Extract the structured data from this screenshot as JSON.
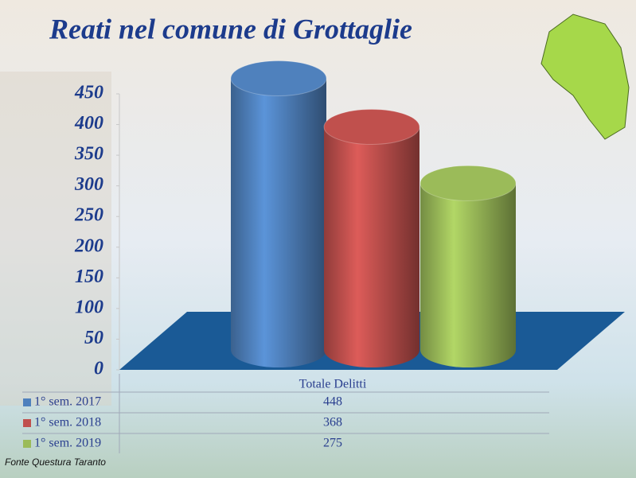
{
  "chart_data": {
    "type": "bar",
    "title": "Reati nel comune di Grottaglie",
    "categories": [
      "Totale Delitti"
    ],
    "series": [
      {
        "name": "1° sem. 2017",
        "color": "#4f81bd",
        "values": [
          448
        ]
      },
      {
        "name": "1° sem. 2018",
        "color": "#c0504d",
        "values": [
          368
        ]
      },
      {
        "name": "1° sem. 2019",
        "color": "#9bbb59",
        "values": [
          275
        ]
      }
    ],
    "ylim": [
      0,
      450
    ],
    "yticks": [
      0,
      50,
      100,
      150,
      200,
      250,
      300,
      350,
      400,
      450
    ],
    "source": "Fonte Questura Taranto"
  }
}
